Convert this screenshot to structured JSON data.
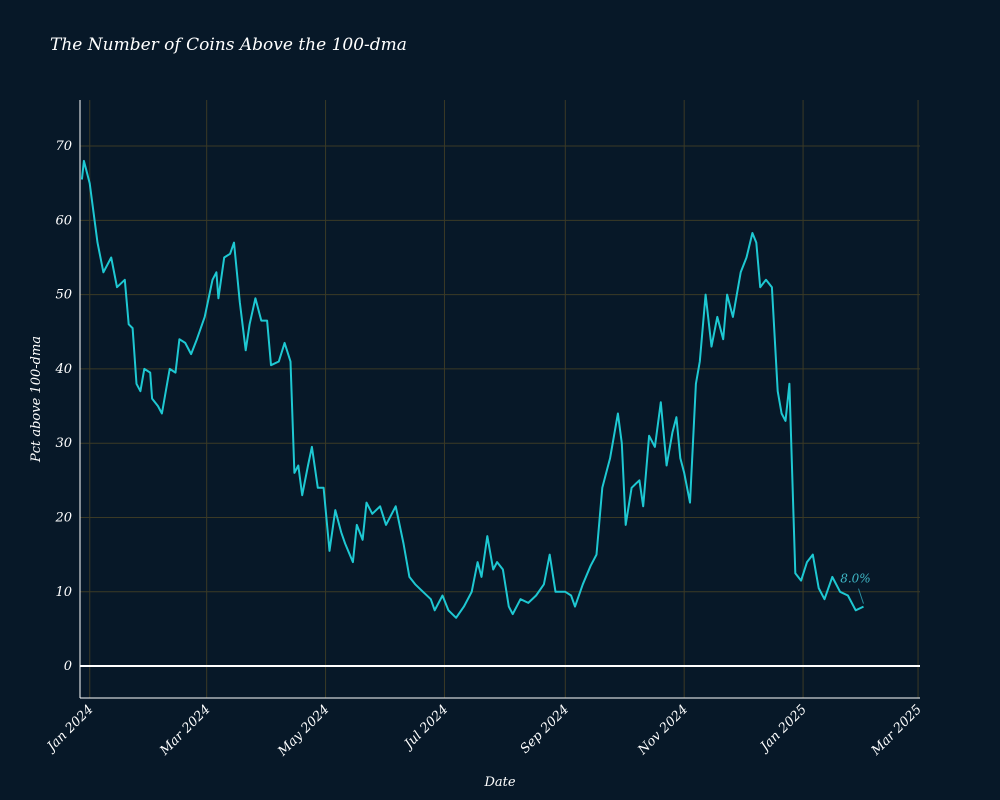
{
  "chart_data": {
    "type": "line",
    "title": "The Number of Coins Above the 100-dma",
    "x_label": "Date",
    "y_label": "Pct above 100-dma",
    "x": [
      "2023-12-28",
      "2023-12-29",
      "2024-01-01",
      "2024-01-05",
      "2024-01-08",
      "2024-01-12",
      "2024-01-15",
      "2024-01-19",
      "2024-01-21",
      "2024-01-23",
      "2024-01-25",
      "2024-01-27",
      "2024-01-29",
      "2024-02-01",
      "2024-02-02",
      "2024-02-05",
      "2024-02-07",
      "2024-02-11",
      "2024-02-14",
      "2024-02-16",
      "2024-02-19",
      "2024-02-22",
      "2024-02-25",
      "2024-02-29",
      "2024-03-04",
      "2024-03-06",
      "2024-03-07",
      "2024-03-10",
      "2024-03-13",
      "2024-03-15",
      "2024-03-18",
      "2024-03-21",
      "2024-03-23",
      "2024-03-26",
      "2024-03-29",
      "2024-04-01",
      "2024-04-03",
      "2024-04-07",
      "2024-04-10",
      "2024-04-13",
      "2024-04-15",
      "2024-04-17",
      "2024-04-19",
      "2024-04-22",
      "2024-04-24",
      "2024-04-27",
      "2024-04-30",
      "2024-05-03",
      "2024-05-06",
      "2024-05-09",
      "2024-05-11",
      "2024-05-15",
      "2024-05-17",
      "2024-05-20",
      "2024-05-22",
      "2024-05-25",
      "2024-05-29",
      "2024-06-01",
      "2024-06-06",
      "2024-06-10",
      "2024-06-13",
      "2024-06-16",
      "2024-06-20",
      "2024-06-24",
      "2024-06-26",
      "2024-06-30",
      "2024-07-03",
      "2024-07-07",
      "2024-07-11",
      "2024-07-15",
      "2024-07-18",
      "2024-07-20",
      "2024-07-23",
      "2024-07-26",
      "2024-07-28",
      "2024-07-31",
      "2024-08-03",
      "2024-08-05",
      "2024-08-09",
      "2024-08-13",
      "2024-08-17",
      "2024-08-21",
      "2024-08-24",
      "2024-08-27",
      "2024-09-01",
      "2024-09-04",
      "2024-09-06",
      "2024-09-10",
      "2024-09-14",
      "2024-09-17",
      "2024-09-20",
      "2024-09-22",
      "2024-09-24",
      "2024-09-26",
      "2024-09-28",
      "2024-09-30",
      "2024-10-02",
      "2024-10-05",
      "2024-10-09",
      "2024-10-11",
      "2024-10-14",
      "2024-10-17",
      "2024-10-20",
      "2024-10-23",
      "2024-10-26",
      "2024-10-28",
      "2024-10-30",
      "2024-11-01",
      "2024-11-04",
      "2024-11-07",
      "2024-11-09",
      "2024-11-12",
      "2024-11-15",
      "2024-11-18",
      "2024-11-21",
      "2024-11-23",
      "2024-11-26",
      "2024-11-30",
      "2024-12-03",
      "2024-12-06",
      "2024-12-08",
      "2024-12-10",
      "2024-12-13",
      "2024-12-16",
      "2024-12-19",
      "2024-12-21",
      "2024-12-23",
      "2024-12-25",
      "2024-12-28",
      "2024-12-31",
      "2025-01-03",
      "2025-01-06",
      "2025-01-09",
      "2025-01-12",
      "2025-01-16",
      "2025-01-20",
      "2025-01-24",
      "2025-01-28",
      "2025-02-01"
    ],
    "series": [
      {
        "name": "Pct above 100-dma",
        "color": "#1ec8d2",
        "values": [
          65.5,
          68,
          65,
          57,
          53,
          55,
          51,
          52,
          46,
          45.5,
          38,
          37,
          40,
          39.5,
          36,
          35,
          34,
          40,
          39.5,
          44,
          43.5,
          42,
          44,
          47,
          52,
          53,
          49.5,
          55,
          55.5,
          57,
          49,
          42.5,
          46,
          49.5,
          46.5,
          46.5,
          40.5,
          41,
          43.5,
          41,
          26,
          27,
          23,
          27,
          29.5,
          24,
          24,
          15.5,
          21,
          18,
          16.5,
          14,
          19,
          17,
          22,
          20.5,
          21.5,
          19,
          21.5,
          16.5,
          12,
          11,
          10,
          9,
          7.5,
          9.5,
          7.5,
          6.5,
          8,
          10,
          14,
          12,
          17.5,
          13,
          14,
          13,
          8,
          7,
          9,
          8.5,
          9.5,
          11,
          15,
          10,
          10,
          9.5,
          8,
          11,
          13.5,
          15,
          24,
          26,
          28,
          31,
          34,
          30,
          19,
          24,
          25,
          21.5,
          31,
          29.5,
          35.5,
          27,
          31.5,
          33.5,
          28,
          26,
          22,
          38,
          41,
          50,
          43,
          47,
          44,
          50,
          47,
          53,
          55,
          58.3,
          57,
          51,
          52,
          51,
          37,
          34,
          33,
          38,
          12.5,
          11.5,
          14,
          15,
          10.5,
          9,
          12,
          10,
          9.5,
          7.5,
          8
        ]
      }
    ],
    "annotations": [
      {
        "text": "8.0%",
        "x": "2025-02-01",
        "y": 8
      }
    ],
    "xlim": [
      "2023-12-27",
      "2025-03-02"
    ],
    "xticks": [
      {
        "value": "2024-01-01",
        "label": "Jan 2024"
      },
      {
        "value": "2024-03-01",
        "label": "Mar 2024"
      },
      {
        "value": "2024-05-01",
        "label": "May 2024"
      },
      {
        "value": "2024-07-01",
        "label": "Jul 2024"
      },
      {
        "value": "2024-09-01",
        "label": "Sep 2024"
      },
      {
        "value": "2024-11-01",
        "label": "Nov 2024"
      },
      {
        "value": "2025-01-01",
        "label": "Jan 2025"
      },
      {
        "value": "2025-03-01",
        "label": "Mar 2025"
      }
    ],
    "ylim": [
      -4.3,
      76.2
    ],
    "yticks": [
      0,
      10,
      20,
      30,
      40,
      50,
      60,
      70
    ],
    "grid": true,
    "grid_color": "#3b3a26",
    "zeroline": true
  }
}
